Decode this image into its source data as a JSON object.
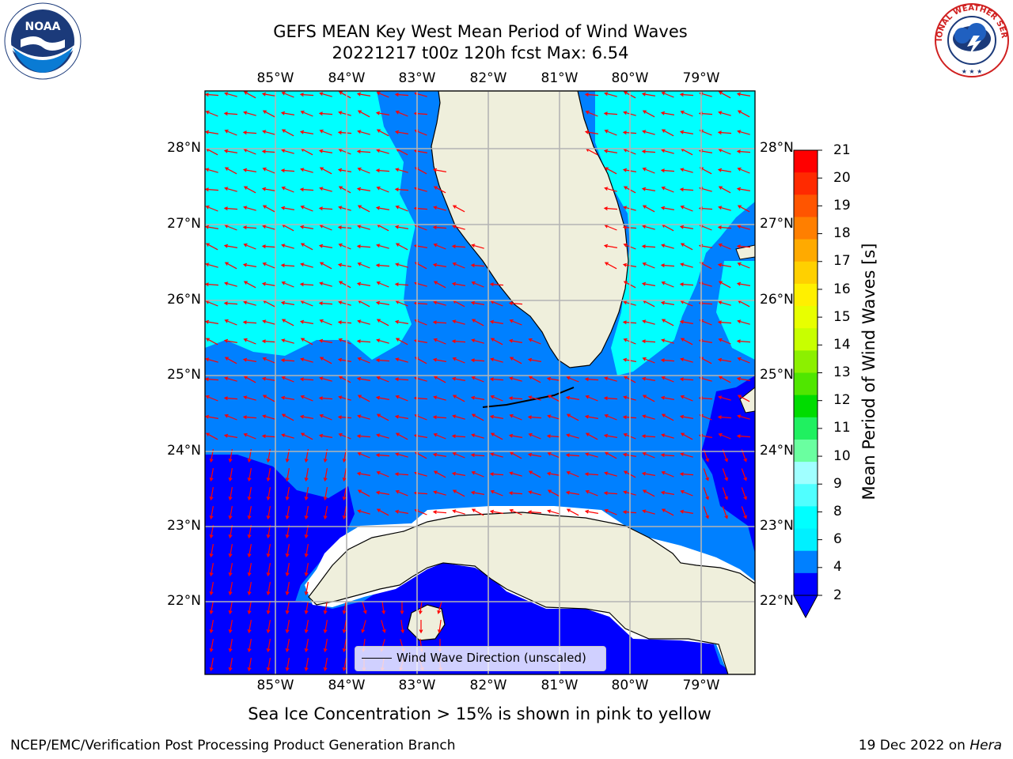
{
  "title_line1": "GEFS MEAN Key West Mean Period of Wind Waves",
  "title_line2": "20221217 t00z 120h fcst   Max: 6.54",
  "lon_labels": [
    "85°W",
    "84°W",
    "83°W",
    "82°W",
    "81°W",
    "80°W",
    "79°W"
  ],
  "lat_labels": [
    "28°N",
    "27°N",
    "26°N",
    "25°N",
    "24°N",
    "23°N",
    "22°N"
  ],
  "colorbar": {
    "label": "Mean Period of Wind Waves [s]",
    "ticks": [
      "21",
      "20",
      "19",
      "18",
      "17",
      "16",
      "15",
      "14",
      "13",
      "12",
      "11",
      "10",
      "9",
      "8",
      "6",
      "4",
      "2"
    ],
    "colors": [
      "#ff0000",
      "#ff2a00",
      "#ff5500",
      "#ff7f00",
      "#ffaa00",
      "#ffd000",
      "#fff000",
      "#e8ff00",
      "#c8ff00",
      "#8cf000",
      "#50e600",
      "#00dc00",
      "#20f060",
      "#6affa0",
      "#a0ffff",
      "#50ffff",
      "#00ffff",
      "#00f0ff",
      "#0080ff",
      "#0000ff"
    ],
    "extend_color": "#0000ff"
  },
  "legend": {
    "label": "Wind Wave Direction (unscaled)",
    "line_color": "#000000"
  },
  "subtitle": "Sea Ice Concentration > 15% is shown in pink to yellow",
  "footer_left": "NCEP/EMC/Verification Post Processing Product Generation Branch",
  "footer_right_date": "19 Dec 2022 on",
  "footer_right_machine": "Hera",
  "colors": {
    "land": "#efefdc",
    "period_2_4": "#0080ff",
    "period_4_6": "#00ffff",
    "period_lt_2": "#0000ff",
    "arrow": "#ff0000",
    "grid": "#b4b4b4"
  },
  "logos": {
    "noaa_text": "NOAA",
    "nws_text": "NATIONAL WEATHER SERVICE"
  }
}
